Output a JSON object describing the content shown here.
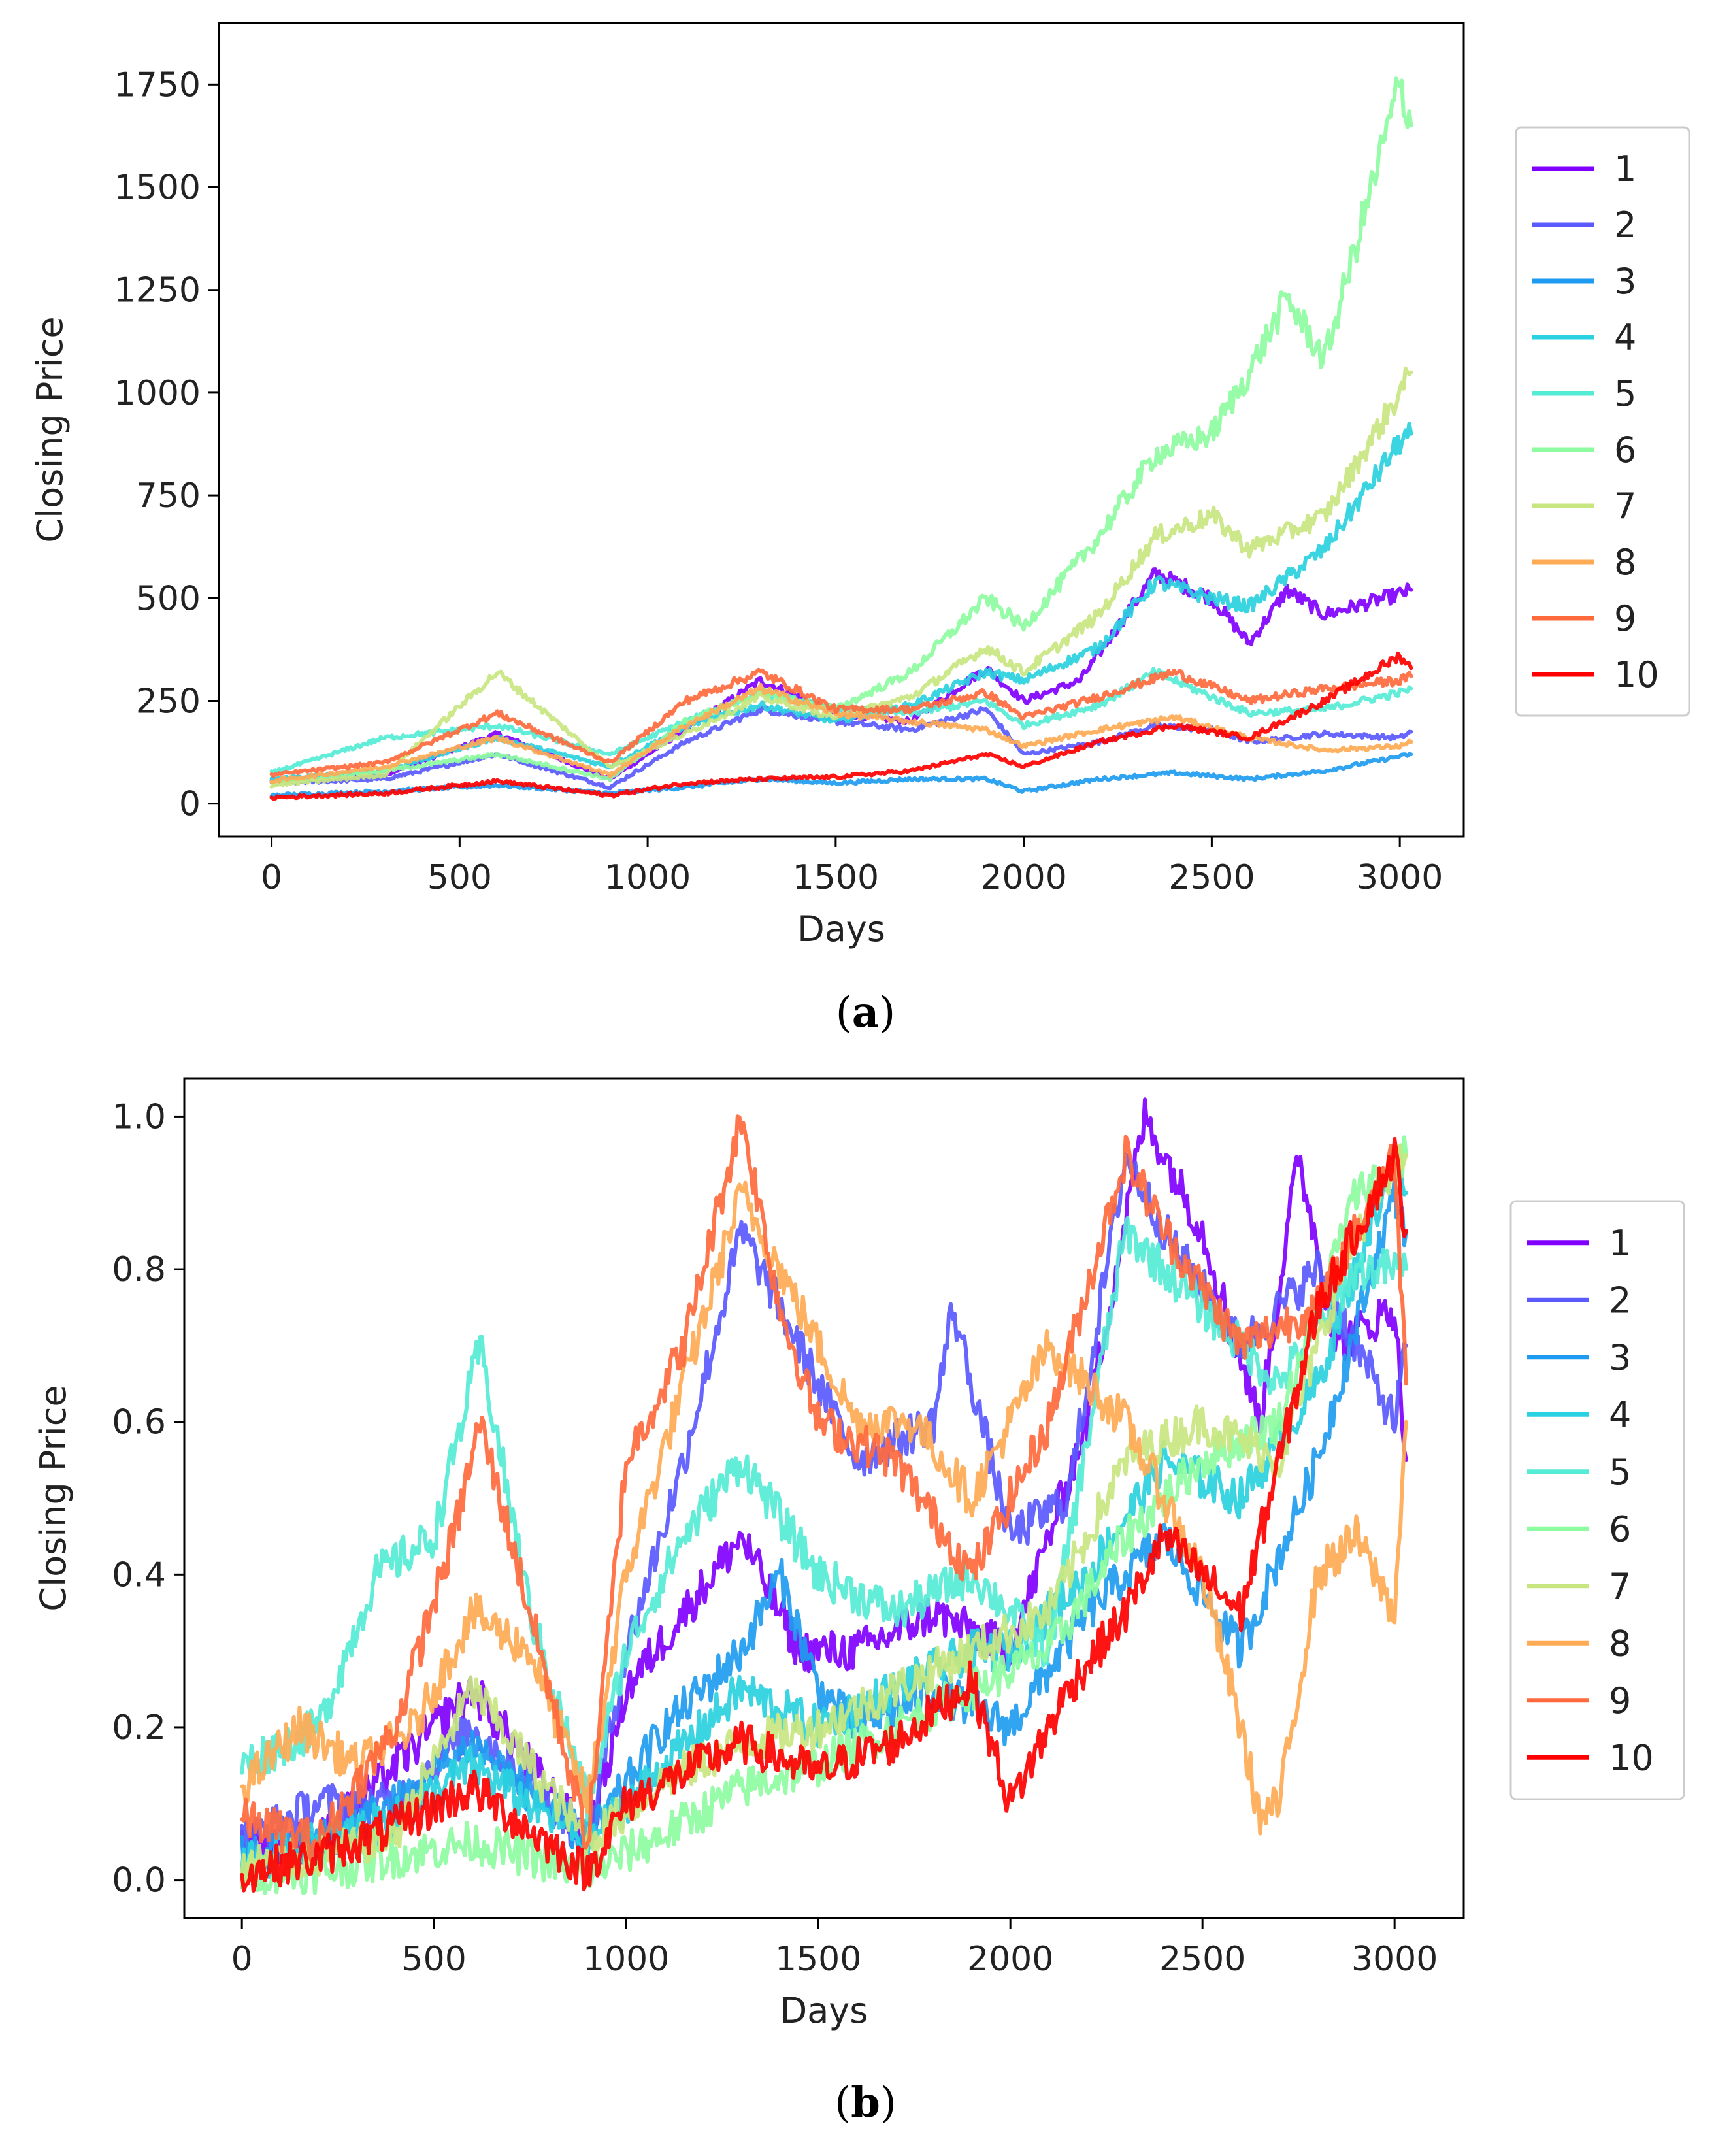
{
  "chart_data": [
    {
      "panel": "a",
      "type": "line",
      "xlabel": "Days",
      "ylabel": "Closing Price",
      "xlim": [
        -140,
        3170
      ],
      "ylim": [
        -80,
        1900
      ],
      "xticks": [
        0,
        500,
        1000,
        1500,
        2000,
        2500,
        3000
      ],
      "xtick_labels": [
        "0",
        "500",
        "1000",
        "1500",
        "2000",
        "2500",
        "3000"
      ],
      "yticks": [
        0,
        250,
        500,
        750,
        1000,
        1250,
        1500,
        1750
      ],
      "ytick_labels": [
        "0",
        "250",
        "500",
        "750",
        "1000",
        "1250",
        "1500",
        "1750"
      ],
      "legend_position": "outside-right",
      "grid": false,
      "series": [
        {
          "name": "1",
          "color": "#8000ff",
          "x": [
            0,
            300,
            600,
            900,
            1100,
            1300,
            1500,
            1700,
            1900,
            2000,
            2150,
            2350,
            2500,
            2600,
            2700,
            2800,
            3000,
            3030
          ],
          "values": [
            55,
            70,
            170,
            60,
            180,
            300,
            220,
            200,
            330,
            250,
            300,
            560,
            500,
            390,
            520,
            460,
            510,
            520
          ]
        },
        {
          "name": "2",
          "color": "#5a5aff",
          "x": [
            0,
            300,
            600,
            900,
            1100,
            1300,
            1500,
            1700,
            1900,
            2000,
            2200,
            2350,
            2500,
            2600,
            2800,
            3000,
            3030
          ],
          "values": [
            50,
            60,
            120,
            40,
            150,
            230,
            200,
            180,
            230,
            120,
            150,
            190,
            180,
            150,
            170,
            160,
            175
          ]
        },
        {
          "name": "3",
          "color": "#1e9bf0",
          "x": [
            0,
            300,
            600,
            900,
            1100,
            1300,
            1500,
            1700,
            1900,
            2000,
            2200,
            2400,
            2600,
            2800,
            3000,
            3030
          ],
          "values": [
            20,
            30,
            45,
            25,
            40,
            60,
            50,
            60,
            60,
            30,
            60,
            75,
            60,
            80,
            115,
            120
          ]
        },
        {
          "name": "4",
          "color": "#2ad1e0",
          "x": [
            0,
            300,
            600,
            900,
            1100,
            1300,
            1500,
            1700,
            1900,
            2000,
            2200,
            2350,
            2500,
            2600,
            2800,
            3000,
            3030
          ],
          "values": [
            60,
            80,
            160,
            90,
            190,
            240,
            200,
            240,
            320,
            300,
            380,
            540,
            500,
            480,
            620,
            880,
            900
          ]
        },
        {
          "name": "5",
          "color": "#55ecd5",
          "x": [
            0,
            300,
            600,
            900,
            1100,
            1300,
            1500,
            1700,
            1900,
            2000,
            2200,
            2350,
            2500,
            2600,
            2800,
            3000,
            3030
          ],
          "values": [
            75,
            160,
            190,
            120,
            200,
            270,
            230,
            220,
            250,
            190,
            240,
            320,
            260,
            220,
            230,
            270,
            280
          ]
        },
        {
          "name": "6",
          "color": "#8dfca0",
          "x": [
            0,
            300,
            600,
            900,
            1100,
            1300,
            1500,
            1700,
            1900,
            2000,
            2200,
            2350,
            2500,
            2600,
            2700,
            2800,
            3000,
            3030
          ],
          "values": [
            50,
            80,
            120,
            60,
            200,
            270,
            230,
            320,
            500,
            430,
            650,
            850,
            900,
            1050,
            1230,
            1080,
            1750,
            1650
          ]
        },
        {
          "name": "7",
          "color": "#c8e680",
          "x": [
            0,
            300,
            600,
            900,
            1100,
            1300,
            1500,
            1700,
            1900,
            2000,
            2200,
            2350,
            2500,
            2600,
            2800,
            3000,
            3030
          ],
          "values": [
            45,
            70,
            320,
            90,
            170,
            260,
            210,
            260,
            380,
            320,
            460,
            650,
            700,
            620,
            700,
            1000,
            1050
          ]
        },
        {
          "name": "8",
          "color": "#ffaa55",
          "x": [
            0,
            300,
            600,
            900,
            1100,
            1300,
            1500,
            1700,
            1900,
            2000,
            2200,
            2400,
            2600,
            2800,
            3000,
            3030
          ],
          "values": [
            55,
            90,
            160,
            70,
            190,
            280,
            220,
            200,
            180,
            140,
            180,
            210,
            160,
            130,
            140,
            150
          ]
        },
        {
          "name": "9",
          "color": "#ff6a3d",
          "x": [
            0,
            300,
            600,
            900,
            1100,
            1300,
            1500,
            1700,
            1900,
            2000,
            2200,
            2400,
            2600,
            2800,
            3000,
            3030
          ],
          "values": [
            70,
            100,
            220,
            100,
            250,
            320,
            230,
            230,
            270,
            210,
            260,
            320,
            250,
            280,
            300,
            310
          ]
        },
        {
          "name": "10",
          "color": "#ff0000",
          "x": [
            0,
            300,
            600,
            900,
            1100,
            1300,
            1500,
            1700,
            1900,
            2000,
            2200,
            2400,
            2600,
            2800,
            3000,
            3030
          ],
          "values": [
            15,
            25,
            55,
            20,
            50,
            60,
            65,
            80,
            120,
            90,
            150,
            190,
            160,
            250,
            360,
            330
          ]
        }
      ]
    },
    {
      "panel": "b",
      "type": "line",
      "xlabel": "Days",
      "ylabel": "Closing Price",
      "xlim": [
        -150,
        3180
      ],
      "ylim": [
        -0.05,
        1.05
      ],
      "xticks": [
        0,
        500,
        1000,
        1500,
        2000,
        2500,
        3000
      ],
      "xtick_labels": [
        "0",
        "500",
        "1000",
        "1500",
        "2000",
        "2500",
        "3000"
      ],
      "yticks": [
        0.0,
        0.2,
        0.4,
        0.6,
        0.8,
        1.0
      ],
      "ytick_labels": [
        "0.0",
        "0.2",
        "0.4",
        "0.6",
        "0.8",
        "1.0"
      ],
      "legend_position": "outside-right",
      "grid": false,
      "series": [
        {
          "name": "1",
          "color": "#8000ff",
          "x": [
            0,
            200,
            400,
            600,
            900,
            1000,
            1150,
            1300,
            1450,
            1600,
            1800,
            2000,
            2200,
            2350,
            2500,
            2650,
            2750,
            2850,
            3000,
            3030
          ],
          "values": [
            0.05,
            0.05,
            0.15,
            0.25,
            0.05,
            0.25,
            0.35,
            0.45,
            0.3,
            0.3,
            0.35,
            0.3,
            0.6,
            1.0,
            0.85,
            0.6,
            0.95,
            0.7,
            0.75,
            0.55
          ]
        },
        {
          "name": "2",
          "color": "#5a5aff",
          "x": [
            0,
            200,
            400,
            600,
            900,
            1000,
            1150,
            1300,
            1450,
            1600,
            1800,
            1850,
            2000,
            2150,
            2300,
            2400,
            2600,
            2800,
            3000,
            3030
          ],
          "values": [
            0.05,
            0.1,
            0.1,
            0.2,
            0.05,
            0.3,
            0.55,
            0.85,
            0.7,
            0.55,
            0.6,
            0.75,
            0.45,
            0.5,
            0.95,
            0.85,
            0.7,
            0.8,
            0.6,
            0.7
          ]
        },
        {
          "name": "3",
          "color": "#1e9bf0",
          "x": [
            0,
            200,
            400,
            600,
            900,
            1100,
            1300,
            1400,
            1500,
            1600,
            1800,
            2000,
            2200,
            2400,
            2600,
            2800,
            3000,
            3030
          ],
          "values": [
            0.03,
            0.05,
            0.1,
            0.18,
            0.05,
            0.2,
            0.3,
            0.4,
            0.25,
            0.2,
            0.25,
            0.2,
            0.35,
            0.45,
            0.3,
            0.55,
            0.9,
            0.85
          ]
        },
        {
          "name": "4",
          "color": "#2ad1e0",
          "x": [
            0,
            200,
            400,
            600,
            900,
            1100,
            1300,
            1500,
            1700,
            1900,
            2000,
            2200,
            2400,
            2600,
            2800,
            3000,
            3030
          ],
          "values": [
            0.02,
            0.05,
            0.08,
            0.15,
            0.05,
            0.15,
            0.25,
            0.2,
            0.25,
            0.3,
            0.3,
            0.4,
            0.55,
            0.5,
            0.65,
            0.95,
            0.9
          ]
        },
        {
          "name": "5",
          "color": "#55ecd5",
          "x": [
            0,
            200,
            350,
            500,
            620,
            750,
            900,
            1000,
            1150,
            1300,
            1500,
            1700,
            1900,
            2100,
            2300,
            2500,
            2700,
            2900,
            3030
          ],
          "values": [
            0.15,
            0.2,
            0.4,
            0.45,
            0.7,
            0.35,
            0.1,
            0.3,
            0.45,
            0.55,
            0.4,
            0.35,
            0.4,
            0.3,
            0.85,
            0.75,
            0.65,
            0.8,
            0.8
          ]
        },
        {
          "name": "6",
          "color": "#8dfca0",
          "x": [
            0,
            200,
            400,
            600,
            900,
            1100,
            1300,
            1500,
            1700,
            1900,
            2100,
            2300,
            2500,
            2700,
            2900,
            3030
          ],
          "values": [
            0.01,
            0.01,
            0.03,
            0.05,
            0.01,
            0.06,
            0.12,
            0.15,
            0.2,
            0.25,
            0.3,
            0.45,
            0.55,
            0.6,
            0.9,
            0.95
          ]
        },
        {
          "name": "7",
          "color": "#c8e680",
          "x": [
            0,
            200,
            400,
            600,
            900,
            1100,
            1300,
            1500,
            1700,
            1900,
            2100,
            2300,
            2500,
            2700,
            2900,
            3030
          ],
          "values": [
            0.02,
            0.03,
            0.06,
            0.25,
            0.05,
            0.13,
            0.18,
            0.2,
            0.25,
            0.3,
            0.35,
            0.55,
            0.6,
            0.55,
            0.85,
            0.95
          ]
        },
        {
          "name": "8",
          "color": "#ffaa55",
          "x": [
            0,
            150,
            300,
            450,
            600,
            750,
            900,
            1000,
            1150,
            1300,
            1450,
            1600,
            1750,
            1900,
            2100,
            2300,
            2500,
            2600,
            2650,
            2700,
            2800,
            2900,
            3000,
            3030
          ],
          "values": [
            0.12,
            0.2,
            0.15,
            0.2,
            0.35,
            0.3,
            0.1,
            0.4,
            0.65,
            0.9,
            0.75,
            0.6,
            0.6,
            0.5,
            0.7,
            0.6,
            0.4,
            0.2,
            0.08,
            0.1,
            0.4,
            0.45,
            0.35,
            0.6
          ]
        },
        {
          "name": "9",
          "color": "#ff6a3d",
          "x": [
            0,
            200,
            400,
            550,
            620,
            750,
            900,
            1000,
            1150,
            1300,
            1400,
            1500,
            1700,
            1900,
            2100,
            2300,
            2400,
            2600,
            2800,
            3000,
            3030
          ],
          "values": [
            0.08,
            0.05,
            0.2,
            0.45,
            0.6,
            0.35,
            0.05,
            0.55,
            0.7,
            1.0,
            0.75,
            0.6,
            0.55,
            0.4,
            0.6,
            0.95,
            0.85,
            0.7,
            0.75,
            0.95,
            0.65
          ]
        },
        {
          "name": "10",
          "color": "#ff0000",
          "x": [
            0,
            200,
            400,
            600,
            900,
            1000,
            1150,
            1300,
            1500,
            1700,
            1900,
            2000,
            2150,
            2300,
            2400,
            2500,
            2600,
            2800,
            3000,
            3030
          ],
          "values": [
            0.01,
            0.03,
            0.07,
            0.12,
            0.01,
            0.1,
            0.14,
            0.18,
            0.14,
            0.18,
            0.26,
            0.1,
            0.25,
            0.35,
            0.45,
            0.4,
            0.35,
            0.75,
            0.95,
            0.85
          ]
        }
      ]
    }
  ],
  "captions": [
    "(a)",
    "(b)"
  ]
}
